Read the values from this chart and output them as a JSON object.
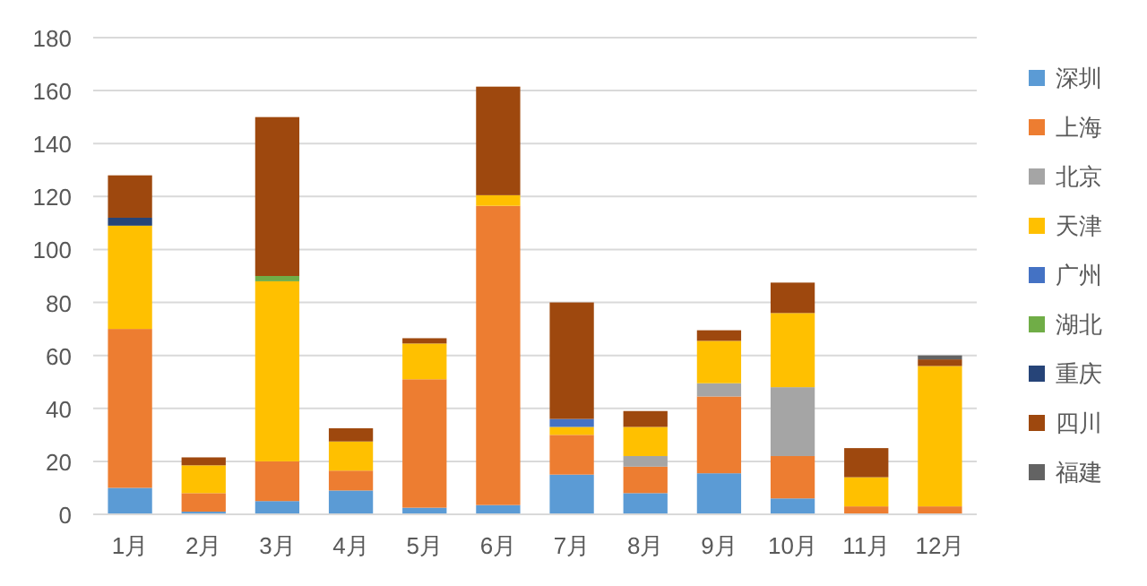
{
  "chart_data": {
    "type": "bar",
    "stacked": true,
    "categories": [
      "1月",
      "2月",
      "3月",
      "4月",
      "5月",
      "6月",
      "7月",
      "8月",
      "9月",
      "10月",
      "11月",
      "12月"
    ],
    "series": [
      {
        "name": "深圳",
        "color": "#5b9bd5",
        "values": [
          10,
          1,
          5,
          9,
          2.5,
          3.5,
          15,
          8,
          15.5,
          6,
          null,
          null
        ]
      },
      {
        "name": "上海",
        "color": "#ed7d31",
        "values": [
          60,
          7,
          15,
          7.5,
          48.5,
          113,
          15,
          10,
          29,
          16,
          3,
          3
        ]
      },
      {
        "name": "北京",
        "color": "#a5a5a5",
        "values": [
          null,
          null,
          null,
          null,
          null,
          null,
          null,
          4,
          5,
          26,
          null,
          null
        ]
      },
      {
        "name": "天津",
        "color": "#ffc000",
        "values": [
          39,
          10.5,
          68,
          11,
          13.5,
          4,
          3,
          11,
          16,
          28,
          11,
          53
        ]
      },
      {
        "name": "广州",
        "color": "#4472c4",
        "values": [
          null,
          null,
          null,
          null,
          null,
          null,
          3,
          null,
          null,
          null,
          null,
          null
        ]
      },
      {
        "name": "湖北",
        "color": "#70ad47",
        "values": [
          null,
          null,
          2,
          null,
          null,
          null,
          null,
          null,
          null,
          null,
          null,
          null
        ]
      },
      {
        "name": "重庆",
        "color": "#264478",
        "values": [
          3,
          null,
          null,
          null,
          null,
          null,
          null,
          null,
          null,
          null,
          null,
          null
        ]
      },
      {
        "name": "四川",
        "color": "#9e480e",
        "values": [
          16,
          3,
          60,
          5,
          2,
          41,
          44,
          6,
          4,
          11.5,
          11,
          2.5
        ]
      },
      {
        "name": "福建",
        "color": "#636363",
        "values": [
          null,
          null,
          null,
          null,
          null,
          null,
          null,
          null,
          null,
          null,
          null,
          1.5
        ]
      }
    ],
    "ylim": [
      0,
      180
    ],
    "yticks": [
      0,
      20,
      40,
      60,
      80,
      100,
      120,
      140,
      160,
      180
    ],
    "grid": "y",
    "legend": "right"
  }
}
